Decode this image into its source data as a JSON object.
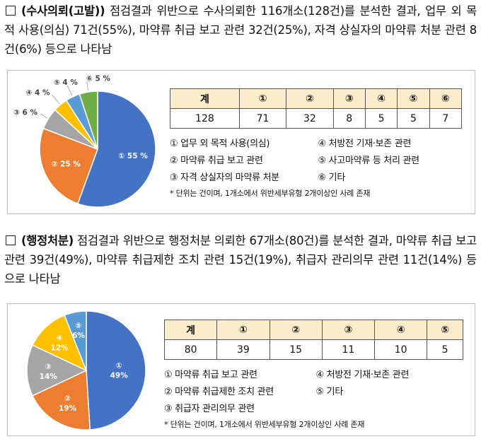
{
  "section1": {
    "box": "□",
    "title": "(수사의뢰(고발))",
    "body": "점검결과 위반으로 수사의뢰한 116개소(128건)를 분석한 결과, 업무 외 목적 사용(의심) 71건(55%), 마약류 취급 보고 관련 32건(25%), 자격 상실자의 마약류 처분 관련 8건(6%) 등으로 나타남",
    "chart_data": {
      "type": "pie",
      "slices": [
        {
          "label": "① 55 %",
          "value": 55,
          "color": "#4472c4"
        },
        {
          "label": "② 25 %",
          "value": 25,
          "color": "#ed7d31"
        },
        {
          "label": "③ 6 %",
          "value": 6,
          "color": "#a5a5a5"
        },
        {
          "label": "④ 4 %",
          "value": 4,
          "color": "#ffc000"
        },
        {
          "label": "⑤ 4 %",
          "value": 4,
          "color": "#5b9bd5"
        },
        {
          "label": "⑥ 5 %",
          "value": 5,
          "color": "#70ad47"
        }
      ]
    },
    "table": {
      "headers": [
        "계",
        "①",
        "②",
        "③",
        "④",
        "⑤",
        "⑥"
      ],
      "values": [
        "128",
        "71",
        "32",
        "8",
        "5",
        "5",
        "7"
      ]
    },
    "legend": [
      "① 업무 외 목적 사용(의심)",
      "④ 처방전 기재·보존 관련",
      "② 마약류 취급 보고 관련",
      "⑤ 사고마약류 등 처리 관련",
      "③ 자격 상실자의 마약류 처분",
      "⑥ 기타"
    ],
    "note": "* 단위는 건이며, 1개소에서 위반세부유형 2개이상인 사례 존재"
  },
  "section2": {
    "box": "□",
    "title": "(행정처분)",
    "body": "점검결과 위반으로 행정처분 의뢰한 67개소(80건)를 분석한 결과, 마약류 취급 보고 관련 39건(49%), 마약류 취급제한 조치 관련 15건(19%), 취급자 관리의무 관련 11건(14%) 등으로 나타남",
    "chart_data": {
      "type": "pie",
      "slices": [
        {
          "label": "① 49%",
          "value": 49,
          "color": "#4472c4"
        },
        {
          "label": "② 19%",
          "value": 19,
          "color": "#ed7d31"
        },
        {
          "label": "③ 14%",
          "value": 14,
          "color": "#a5a5a5"
        },
        {
          "label": "④ 12%",
          "value": 12,
          "color": "#ffc000"
        },
        {
          "label": "⑤ 6%",
          "value": 6,
          "color": "#5b9bd5"
        }
      ]
    },
    "table": {
      "headers": [
        "계",
        "①",
        "②",
        "③",
        "④",
        "⑤"
      ],
      "values": [
        "80",
        "39",
        "15",
        "11",
        "10",
        "5"
      ]
    },
    "legend": [
      "① 마약류 취급 보고 관련",
      "④ 처방전 기재·보존 관련",
      "② 마약류 취급제한 조치 관련",
      "⑤ 기타",
      "③ 취급자 관리의무 관련",
      ""
    ],
    "note": "* 단위는 건이며, 1개소에서 위반세부유형 2개이상인 사례 존재"
  }
}
